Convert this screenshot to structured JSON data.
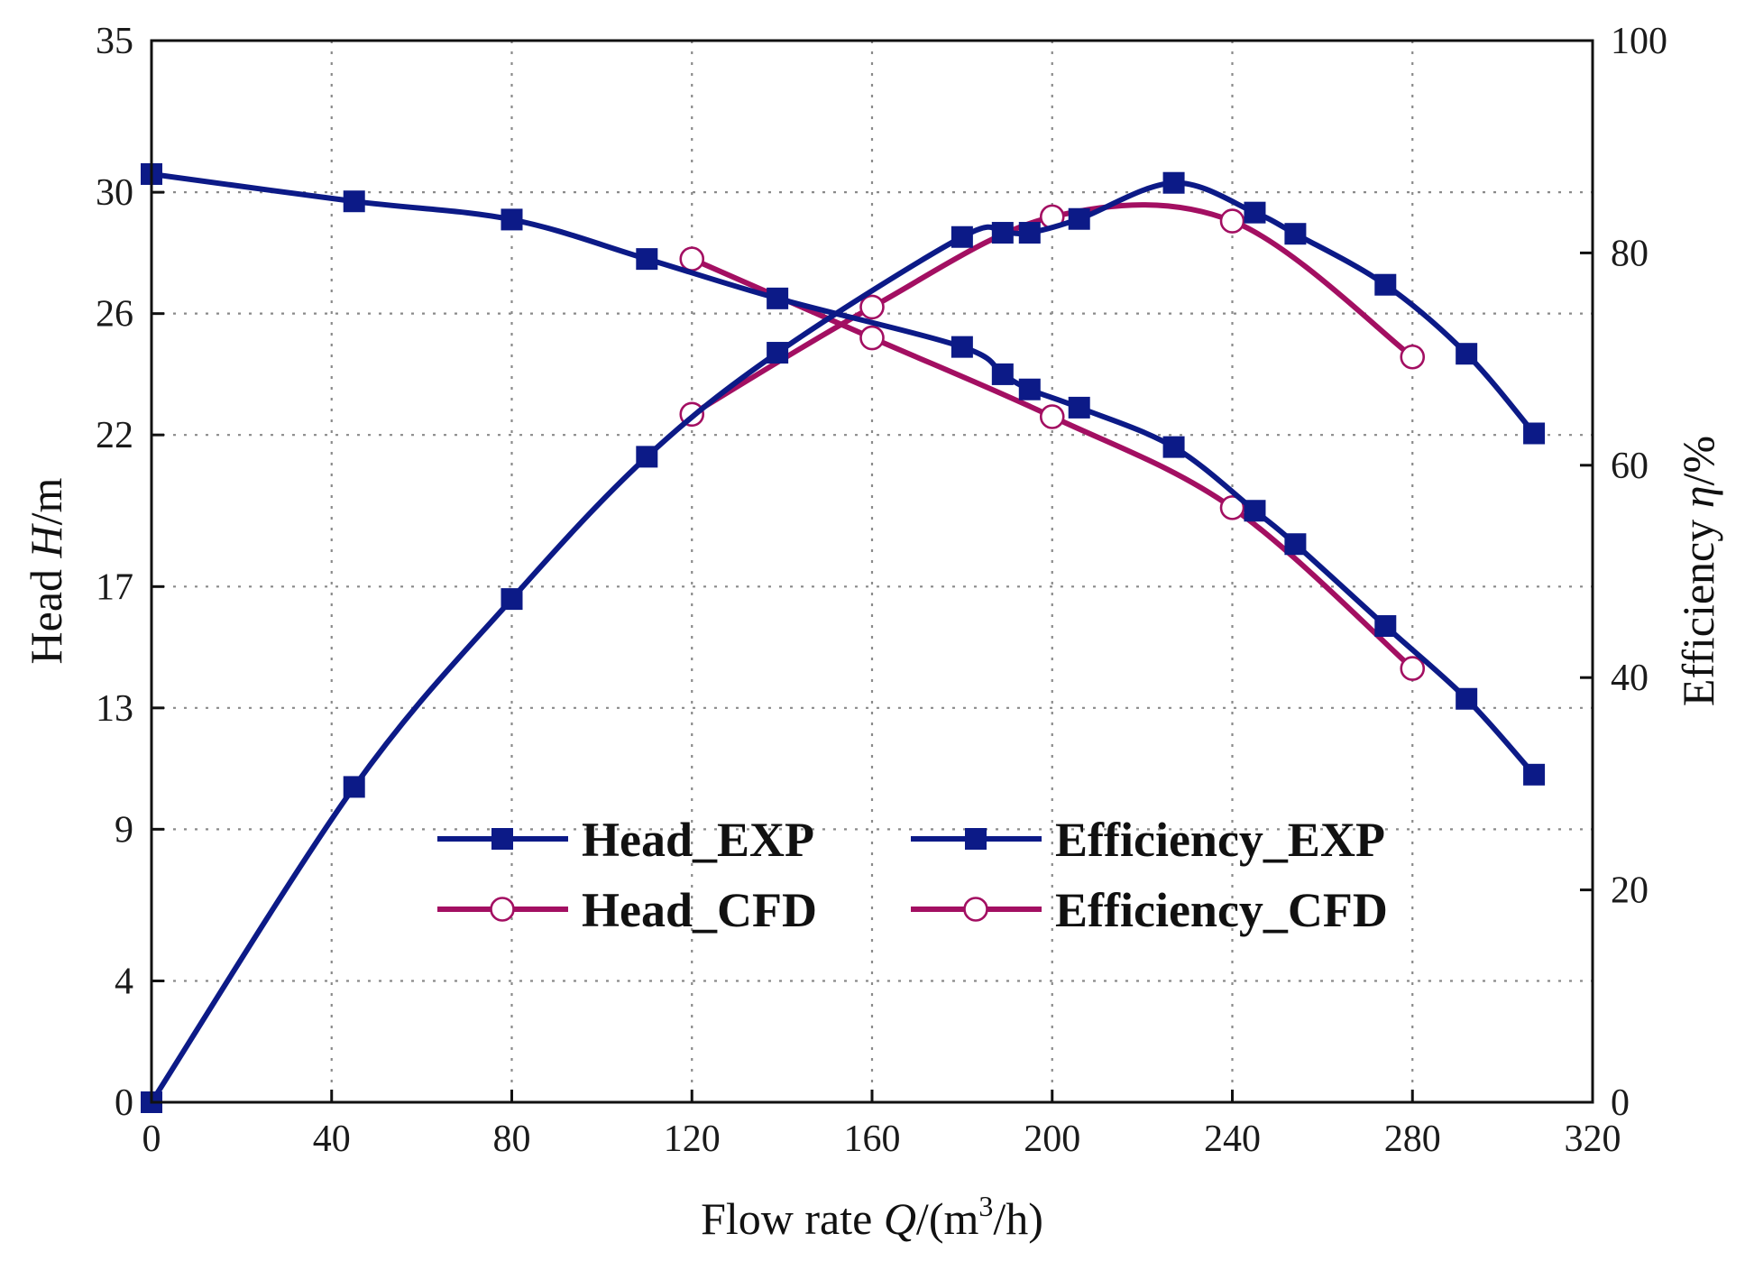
{
  "chart_data": {
    "type": "line",
    "x": {
      "label_prefix": "Flow rate ",
      "label_var": "Q",
      "label_unit_open": "/(m",
      "label_sup": "3",
      "label_unit_close": "/h)",
      "lim": [
        0,
        320
      ],
      "ticks": [
        0,
        40,
        80,
        120,
        160,
        200,
        240,
        280,
        320
      ]
    },
    "y_left": {
      "label_prefix": "Head ",
      "label_var": "H",
      "label_suffix": "/m",
      "lim": [
        0,
        35
      ],
      "ticks": [
        0,
        4,
        9,
        13,
        17,
        22,
        26,
        30,
        35
      ],
      "tick_labels": [
        "0",
        "4",
        "9",
        "13",
        "17",
        "22",
        "26",
        "30",
        "35"
      ]
    },
    "y_right": {
      "label_prefix": "Efficiency ",
      "label_var": "η",
      "label_suffix": "/%",
      "lim": [
        0,
        100
      ],
      "ticks": [
        0,
        20,
        40,
        60,
        80,
        100
      ]
    },
    "grid": true,
    "legend_position": "bottom-center",
    "series": [
      {
        "name": "Head_EXP",
        "axis": "left",
        "color": "#0c1a87",
        "marker": "square",
        "x": [
          0,
          45,
          80,
          110,
          139,
          180,
          189,
          195,
          206,
          227,
          245,
          254,
          274,
          292,
          307
        ],
        "y": [
          30.6,
          29.7,
          29.1,
          27.8,
          26.5,
          24.9,
          24.0,
          23.5,
          22.9,
          21.6,
          19.5,
          18.4,
          15.7,
          13.3,
          10.8
        ]
      },
      {
        "name": "Efficiency_EXP",
        "axis": "right",
        "color": "#0c1a87",
        "marker": "square",
        "x": [
          0,
          45,
          80,
          110,
          139,
          180,
          189,
          195,
          206,
          227,
          245,
          254,
          274,
          292,
          307
        ],
        "y": [
          0,
          29.7,
          47.4,
          60.8,
          70.6,
          81.5,
          81.9,
          81.9,
          83.2,
          86.6,
          83.8,
          81.8,
          77.0,
          70.5,
          63.0
        ]
      },
      {
        "name": "Head_CFD",
        "axis": "left",
        "color": "#a30f62",
        "marker": "circle-open",
        "x": [
          120,
          160,
          200,
          240,
          280
        ],
        "y": [
          27.8,
          25.2,
          22.6,
          19.6,
          14.3
        ]
      },
      {
        "name": "Efficiency_CFD",
        "axis": "right",
        "color": "#a30f62",
        "marker": "circle-open",
        "x": [
          120,
          160,
          200,
          240,
          280
        ],
        "y": [
          64.8,
          74.9,
          83.4,
          83.0,
          70.2
        ]
      }
    ],
    "legend": [
      "Head_EXP",
      "Efficiency_EXP",
      "Head_CFD",
      "Efficiency_CFD"
    ]
  }
}
